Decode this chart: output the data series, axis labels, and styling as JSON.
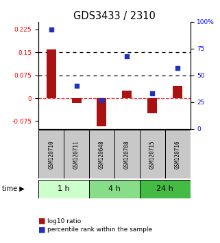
{
  "title": "GDS3433 / 2310",
  "samples": [
    "GSM120710",
    "GSM120711",
    "GSM120648",
    "GSM120708",
    "GSM120715",
    "GSM120716"
  ],
  "log10_ratio": [
    0.16,
    -0.015,
    -0.092,
    0.025,
    -0.05,
    0.04
  ],
  "percentile_rank": [
    93,
    40,
    27,
    68,
    33,
    57
  ],
  "time_groups": [
    {
      "label": "1 h",
      "count": 2,
      "color": "#ccffcc"
    },
    {
      "label": "4 h",
      "count": 2,
      "color": "#88dd88"
    },
    {
      "label": "24 h",
      "count": 2,
      "color": "#44bb44"
    }
  ],
  "ylim_left": [
    -0.1,
    0.25
  ],
  "ylim_right": [
    0,
    100
  ],
  "yticks_left": [
    -0.075,
    0,
    0.075,
    0.15,
    0.225
  ],
  "yticks_right": [
    0,
    25,
    50,
    75,
    100
  ],
  "dotted_hlines": [
    0.075,
    0.15
  ],
  "bar_color": "#aa1111",
  "dot_color": "#2233bb",
  "bar_width": 0.38,
  "title_fontsize": 10.5,
  "tick_fontsize": 6.5,
  "sample_fontsize": 5.5,
  "time_fontsize": 8,
  "legend_fontsize": 6.5
}
